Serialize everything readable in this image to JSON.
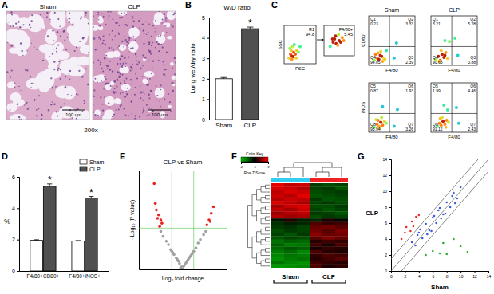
{
  "chart_data": [
    {
      "type": "image",
      "panel": "A",
      "labels": [
        "Sham",
        "CLP"
      ],
      "scale_bar": "100 um",
      "magnification": "200x"
    },
    {
      "type": "bar",
      "panel": "B",
      "title": "W/D ratio",
      "y_label": "Lung wet/dry ratio",
      "categories": [
        "Sham",
        "CLP"
      ],
      "values": [
        2.0,
        4.45
      ],
      "errors": [
        0.06,
        0.08
      ],
      "colors": [
        "#ffffff",
        "#505050"
      ],
      "ylim": [
        0,
        5
      ],
      "yticks": [
        0,
        1,
        2,
        3,
        4,
        5
      ],
      "annotations": [
        {
          "text": "*",
          "category": "CLP"
        }
      ]
    },
    {
      "type": "flow",
      "panel": "C",
      "xlim": [
        0,
        100
      ],
      "ylim": [
        0,
        100
      ],
      "tick_labels": false,
      "gates": [
        {
          "x_label": "FSC",
          "y_label": "SSC",
          "gate": "R1",
          "value": 94.8,
          "x": [
            15,
            20,
            25,
            30,
            22,
            28,
            35,
            18,
            40,
            26,
            32,
            45,
            24,
            38,
            50
          ],
          "y": [
            15,
            25,
            20,
            30,
            35,
            18,
            25,
            40,
            35,
            45,
            50,
            30,
            12,
            15,
            45
          ]
        },
        {
          "gate": "F4/80+",
          "value": 5.45,
          "x": [
            20,
            30,
            40,
            35,
            50,
            45,
            60,
            55,
            38,
            48,
            28,
            65
          ],
          "y": [
            30,
            45,
            40,
            55,
            50,
            35,
            60,
            45,
            65,
            70,
            55,
            50
          ]
        }
      ],
      "groups": [
        "Sham",
        "CLP"
      ],
      "quadrant_gate": {
        "x": 45,
        "y": 38
      },
      "rows": [
        {
          "y_label": "CD80",
          "plots": [
            {
              "x_label": "F4/80",
              "quadrants": [
                {
                  "label": "Q1",
                  "value": 0.23
                },
                {
                  "label": "Q2",
                  "value": 3.33
                },
                {
                  "label": "Q4",
                  "value": 94.05
                },
                {
                  "label": "Q3",
                  "value": 2.39
                }
              ],
              "x": [
                12,
                18,
                22,
                25,
                28,
                30,
                33,
                20,
                15,
                35,
                26,
                38,
                55,
                60
              ],
              "y": [
                10,
                15,
                12,
                20,
                18,
                8,
                14,
                25,
                22,
                12,
                28,
                30,
                15,
                45
              ]
            },
            {
              "x_label": "F4/80",
              "quadrants": [
                {
                  "label": "Q1",
                  "value": 3.21
                },
                {
                  "label": "Q2",
                  "value": 5.28
                },
                {
                  "label": "Q4",
                  "value": 90.63
                },
                {
                  "label": "Q3",
                  "value": 0.88
                }
              ],
              "x": [
                10,
                16,
                20,
                24,
                28,
                32,
                36,
                22,
                18,
                30,
                40,
                52,
                58,
                30
              ],
              "y": [
                12,
                18,
                10,
                22,
                16,
                26,
                14,
                30,
                8,
                20,
                48,
                55,
                20,
                50
              ]
            }
          ]
        },
        {
          "y_label": "iNOS",
          "plots": [
            {
              "x_label": "F4/80",
              "quadrants": [
                {
                  "label": "Q5",
                  "value": 0.87
                },
                {
                  "label": "Q6",
                  "value": 1.93
                },
                {
                  "label": "Q8",
                  "value": 93.94
                },
                {
                  "label": "Q7",
                  "value": 3.26
                }
              ],
              "x": [
                12,
                18,
                22,
                26,
                30,
                34,
                16,
                24,
                28,
                38,
                20,
                55,
                62,
                30
              ],
              "y": [
                10,
                16,
                12,
                20,
                14,
                22,
                26,
                8,
                30,
                18,
                24,
                12,
                46,
                52
              ]
            },
            {
              "x_label": "F4/80",
              "quadrants": [
                {
                  "label": "Q5",
                  "value": 1.99
                },
                {
                  "label": "Q6",
                  "value": 4.46
                },
                {
                  "label": "Q8",
                  "value": 91.12
                },
                {
                  "label": "Q7",
                  "value": 2.43
                }
              ],
              "x": [
                14,
                18,
                22,
                26,
                30,
                34,
                38,
                20,
                24,
                32,
                36,
                55,
                60,
                28
              ],
              "y": [
                12,
                18,
                14,
                22,
                16,
                24,
                20,
                28,
                30,
                10,
                45,
                50,
                18,
                55
              ]
            }
          ]
        }
      ]
    },
    {
      "type": "bar",
      "panel": "D",
      "y_label": "%",
      "categories": [
        "F4/80+CD80+",
        "F4/80+iNOS+"
      ],
      "series": [
        {
          "name": "Sham",
          "color": "#ffffff",
          "values": [
            1.95,
            1.9
          ],
          "errors": [
            0.04,
            0.04
          ]
        },
        {
          "name": "CLP",
          "color": "#505050",
          "values": [
            5.4,
            4.65
          ],
          "errors": [
            0.15,
            0.1
          ]
        }
      ],
      "ylim": [
        0,
        6
      ],
      "yticks": [
        0,
        2,
        4,
        6
      ],
      "legend": "top-right",
      "annotations": [
        {
          "text": "*",
          "category": "F4/80+CD80+",
          "series": "CLP"
        },
        {
          "text": "*",
          "category": "F4/80+iNOS+",
          "series": "CLP"
        }
      ]
    },
    {
      "type": "volcano",
      "panel": "E",
      "title": "CLP vs Sham",
      "x_label": "Log₂ fold change",
      "y_label": "−Log₁₀ (P value)",
      "xlim": [
        -4,
        4
      ],
      "ylim": [
        0,
        6
      ],
      "tick_labels": false,
      "thresholds": {
        "x": [
          -1,
          1
        ],
        "y": [
          2.5
        ]
      },
      "series": [
        {
          "color": "#a0a0a0",
          "x": [
            -0.2,
            0.1,
            0.3,
            -0.5,
            0.6,
            -0.8,
            0.9,
            -1.1,
            1.2,
            -1.3,
            1.4,
            -0.4,
            0.4,
            -0.9,
            0.8,
            -0.1,
            0.2,
            -0.6,
            0.7,
            -1.5,
            1.6,
            -1.8,
            1.9,
            0,
            -0.3,
            0.5,
            -1.0,
            1.0,
            -2.0,
            2.1
          ],
          "values": [
            0.1,
            0.2,
            0.4,
            0.6,
            0.7,
            0.9,
            1.0,
            1.2,
            1.3,
            1.5,
            1.6,
            0.5,
            0.5,
            1.0,
            0.9,
            0.15,
            0.3,
            0.7,
            0.8,
            1.7,
            1.8,
            2.0,
            2.1,
            0.05,
            0.35,
            0.6,
            1.1,
            1.1,
            2.3,
            2.3
          ]
        },
        {
          "color": "#e8231f",
          "x": [
            -2.6,
            -2.4,
            -2.2,
            -2.0,
            -1.9,
            -2.3,
            -2.1,
            2.4,
            2.6,
            2.8,
            2.2,
            2.5,
            -2.5
          ],
          "values": [
            5.2,
            3.6,
            3.3,
            3.0,
            2.8,
            3.1,
            2.6,
            3.0,
            3.4,
            3.8,
            2.7,
            2.9,
            4.0
          ]
        }
      ]
    },
    {
      "type": "heatmap",
      "panel": "F",
      "color_key_title": "Color Key",
      "color_key_label": "Row Z-Score",
      "zlim": [
        -2,
        2
      ],
      "zticks": [
        -2,
        0,
        2
      ],
      "colors": [
        "#00c000",
        "#000000",
        "#ff0000"
      ],
      "groups": [
        {
          "label": "Sham",
          "color": "#33ccee",
          "columns": 3
        },
        {
          "label": "CLP",
          "color": "#ee2222",
          "columns": 3
        }
      ],
      "cells": [
        [
          1.8,
          1.5,
          1.6,
          -0.6,
          -0.8,
          -0.7
        ],
        [
          1.7,
          1.6,
          1.4,
          -0.7,
          -0.6,
          -0.9
        ],
        [
          1.5,
          1.7,
          1.6,
          -0.8,
          -0.7,
          -0.6
        ],
        [
          1.6,
          1.4,
          1.8,
          -0.9,
          -0.8,
          -0.7
        ],
        [
          1.4,
          1.6,
          1.5,
          -0.6,
          -0.9,
          -0.8
        ],
        [
          1.7,
          1.5,
          1.3,
          -0.7,
          -0.6,
          -0.8
        ],
        [
          1.3,
          1.6,
          1.7,
          -0.8,
          -0.8,
          -0.6
        ],
        [
          1.5,
          1.3,
          1.6,
          -0.7,
          -0.9,
          -0.7
        ],
        [
          1.2,
          1.4,
          1.5,
          -0.6,
          -0.7,
          -0.9
        ],
        [
          1.4,
          1.2,
          1.3,
          -0.8,
          -0.6,
          -0.7
        ],
        [
          -0.2,
          0.3,
          -0.3,
          -0.4,
          0.2,
          -0.1
        ],
        [
          -0.5,
          -0.3,
          -0.4,
          0.6,
          0.4,
          0.5
        ],
        [
          -0.6,
          -0.5,
          -0.7,
          0.8,
          0.9,
          0.7
        ],
        [
          -0.8,
          -0.6,
          -0.7,
          0.9,
          0.7,
          1.0
        ],
        [
          -0.7,
          -0.9,
          -0.6,
          1.1,
          0.8,
          0.9
        ],
        [
          -0.9,
          -0.7,
          -0.8,
          0.7,
          1.0,
          0.8
        ],
        [
          -1.2,
          -1.0,
          -1.1,
          0.3,
          0.5,
          0.4
        ],
        [
          -1.0,
          -1.3,
          -1.2,
          0.5,
          0.2,
          0.6
        ],
        [
          -1.1,
          -0.9,
          -1.0,
          0.2,
          0.4,
          0.3
        ],
        [
          -1.3,
          -1.1,
          -1.4,
          0.6,
          0.3,
          0.2
        ],
        [
          -1.4,
          -1.2,
          -1.3,
          0.4,
          0.6,
          0.5
        ],
        [
          -1.5,
          -1.3,
          -1.2,
          0.3,
          0.5,
          0.7
        ],
        [
          -1.2,
          -1.4,
          -1.5,
          0.5,
          0.4,
          0.3
        ],
        [
          -1.6,
          -1.5,
          -1.4,
          0.6,
          0.2,
          0.4
        ]
      ]
    },
    {
      "type": "scatter",
      "panel": "G",
      "x_label": "Sham",
      "y_label": "CLP",
      "xlim": [
        0,
        14
      ],
      "ylim": [
        0,
        14
      ],
      "xticks": [
        0,
        2,
        4,
        6,
        8,
        10,
        12,
        14
      ],
      "yticks": [
        0,
        2,
        4,
        6,
        8,
        10,
        12,
        14
      ],
      "reference_lines": [
        {
          "slope": 1,
          "intercept": -1.5
        },
        {
          "slope": 1,
          "intercept": 0
        },
        {
          "slope": 1,
          "intercept": 1.5
        }
      ],
      "series": [
        {
          "color": "#3b5bdb",
          "x": [
            3,
            3.5,
            4,
            4.5,
            5,
            5.5,
            6,
            6.5,
            7,
            7.5,
            8,
            8.5,
            9,
            9.5,
            10,
            4.2,
            5.8,
            6.8,
            7.8,
            8.8,
            5.2,
            6.2,
            7.2,
            9.2,
            3.8
          ],
          "values": [
            3.6,
            3.2,
            4.8,
            4.1,
            5.9,
            5.1,
            6.7,
            6.0,
            7.9,
            7.1,
            8.6,
            8.0,
            9.8,
            9.1,
            10.5,
            5.2,
            5.0,
            7.6,
            7.2,
            9.4,
            4.6,
            6.9,
            6.6,
            8.5,
            4.5
          ]
        },
        {
          "color": "#e03030",
          "x": [
            1.5,
            2,
            2.2,
            2.8,
            3,
            3.2,
            3.6,
            4
          ],
          "values": [
            4,
            4.8,
            5.5,
            5.0,
            6.2,
            5.6,
            6.8,
            7.0
          ]
        },
        {
          "color": "#33aa33",
          "x": [
            5,
            6,
            7,
            7.5,
            8,
            9,
            10,
            11
          ],
          "values": [
            2,
            2.5,
            2.2,
            3.5,
            2.1,
            4.0,
            3.1,
            2.4
          ]
        }
      ]
    }
  ]
}
